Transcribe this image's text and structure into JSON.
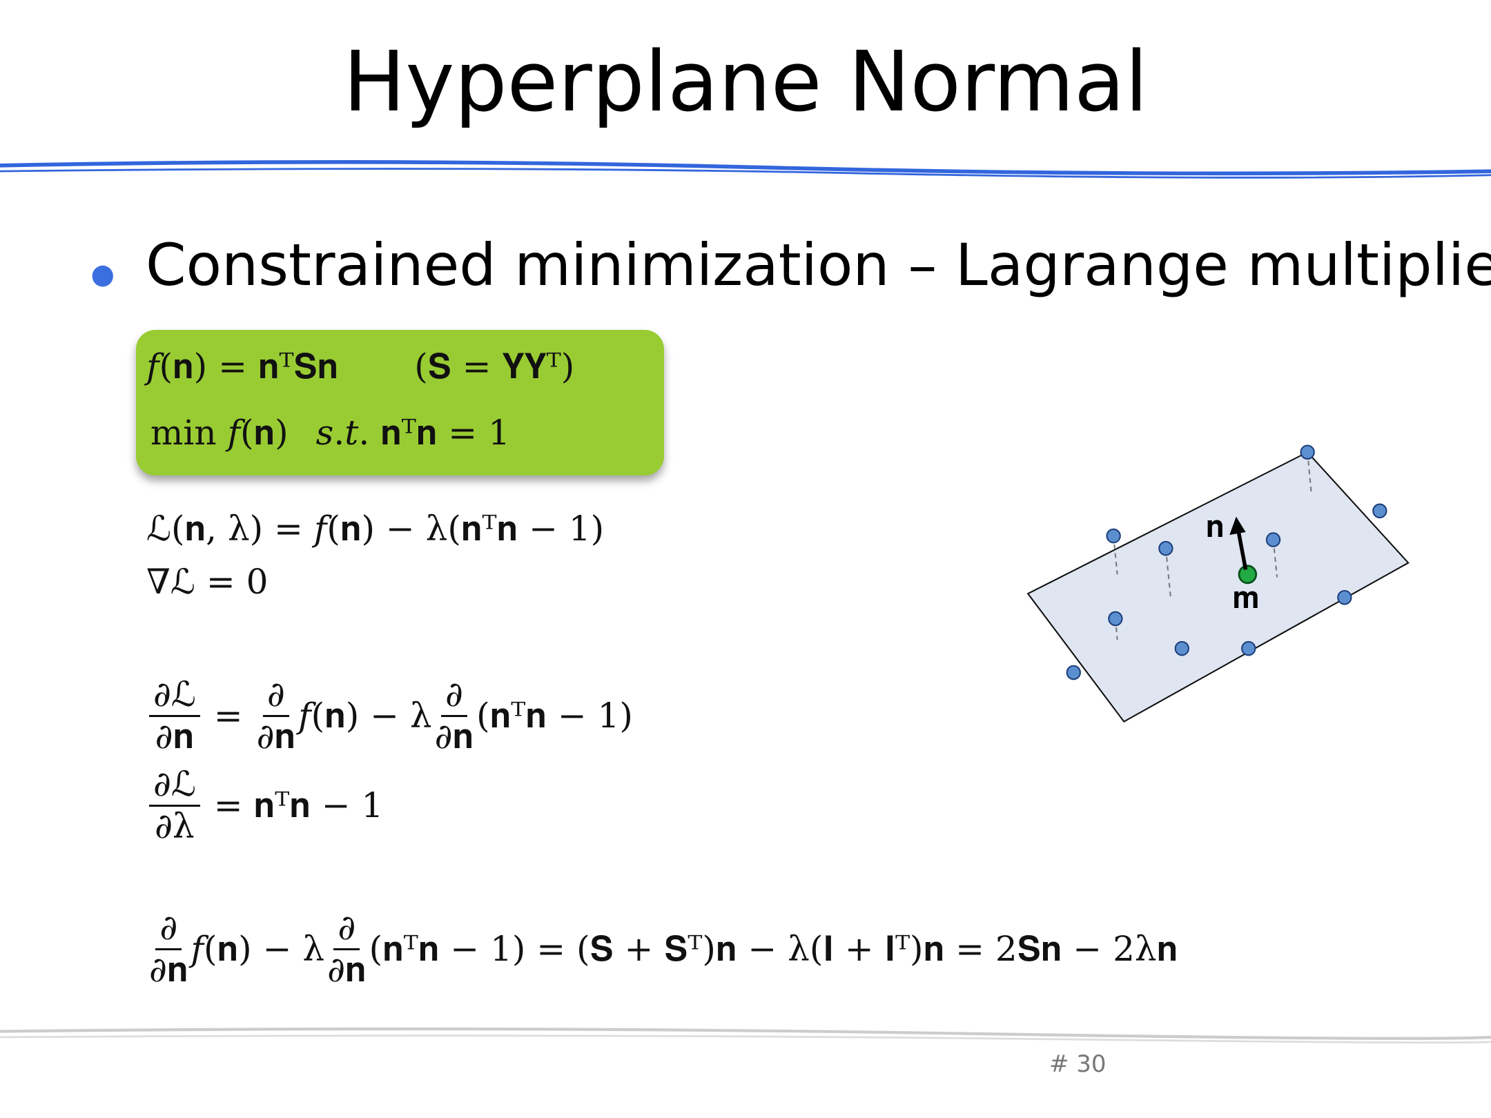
{
  "title": "Hyperplane Normal",
  "bullet": "Constrained minimization – Lagrange multipliers",
  "box": {
    "lines": [
      [
        "𝑓(𝐧) = 𝐧ᵀ𝐒𝐧",
        "(𝐒 = 𝐘𝐘ᵀ)"
      ],
      [
        "min 𝑓(𝐧)",
        "𝑠.𝑡. 𝐧ᵀ𝐧 = 1"
      ]
    ]
  },
  "lagrangian": [
    "ℒ(𝐧, λ) = 𝑓(𝐧) − λ(𝐧ᵀ𝐧 − 1)",
    "∇ℒ = 0"
  ],
  "derivatives": [
    [
      {
        "num": "∂ℒ",
        "den": "∂𝐧"
      },
      " = ",
      {
        "num": "∂",
        "den": "∂𝐧"
      },
      "𝑓(𝐧) − λ",
      {
        "num": "∂",
        "den": "∂𝐧"
      },
      "(𝐧ᵀ𝐧 − 1)"
    ],
    [
      {
        "num": "∂ℒ",
        "den": "∂λ"
      },
      " = 𝐧ᵀ𝐧 − 1"
    ]
  ],
  "result": [
    {
      "num": "∂",
      "den": "∂𝐧"
    },
    "𝑓(𝐧) − λ",
    {
      "num": "∂",
      "den": "∂𝐧"
    },
    "(𝐧ᵀ𝐧 − 1) = (𝐒 + 𝐒ᵀ)𝐧 − λ(𝐈 + 𝐈ᵀ)𝐧 = 2𝐒𝐧 − 2λ𝐧"
  ],
  "diagram": {
    "normal_label": "𝐧",
    "mean_label": "𝐦"
  },
  "page_number": "# 30"
}
